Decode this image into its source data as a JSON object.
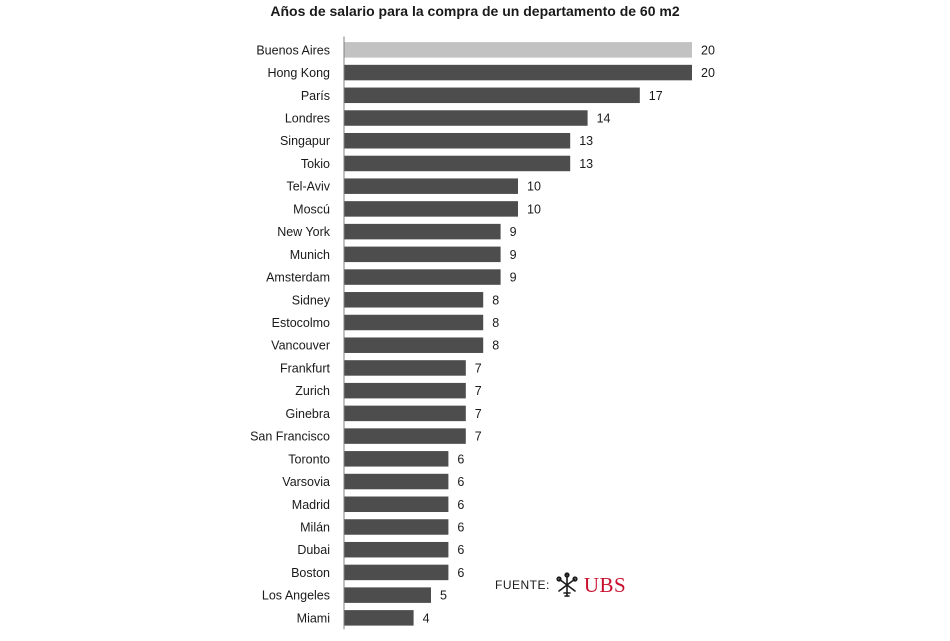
{
  "chart_data": {
    "type": "bar",
    "orientation": "horizontal",
    "title": "Años de salario para la compra de un departamento de 60 m2",
    "categories": [
      "Buenos Aires",
      "Hong Kong",
      "París",
      "Londres",
      "Singapur",
      "Tokio",
      "Tel-Aviv",
      "Moscú",
      "New York",
      "Munich",
      "Amsterdam",
      "Sidney",
      "Estocolmo",
      "Vancouver",
      "Frankfurt",
      "Zurich",
      "Ginebra",
      "San Francisco",
      "Toronto",
      "Varsovia",
      "Madrid",
      "Milán",
      "Dubai",
      "Boston",
      "Los Angeles",
      "Miami"
    ],
    "values": [
      20,
      20,
      17,
      14,
      13,
      13,
      10,
      10,
      9,
      9,
      9,
      8,
      8,
      8,
      7,
      7,
      7,
      7,
      6,
      6,
      6,
      6,
      6,
      6,
      5,
      4
    ],
    "highlight_category": "Buenos Aires",
    "colors": {
      "default": "#4d4d4d",
      "highlight": "#c2c2c2",
      "axis": "#808080"
    },
    "xlim": [
      0,
      20
    ],
    "xlabel": "",
    "ylabel": "",
    "grid": false,
    "legend": "none"
  },
  "source": {
    "label": "FUENTE:",
    "logo_text": "UBS",
    "logo_icon": "ubs-keys-icon",
    "logo_color": "#c8102e"
  }
}
